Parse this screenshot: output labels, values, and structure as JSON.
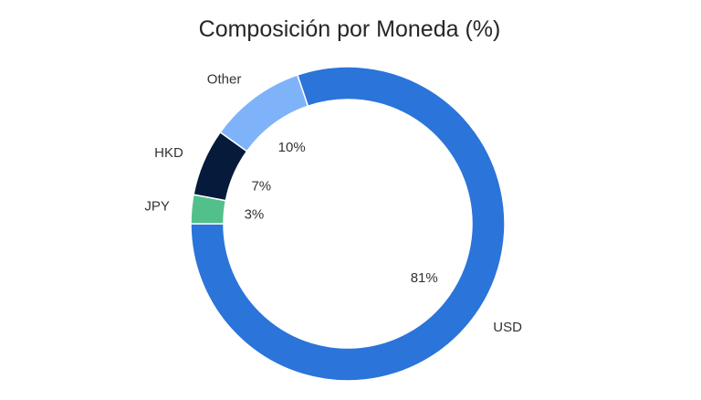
{
  "chart_data": {
    "type": "pie",
    "donut": true,
    "title": "Composición por Moneda (%)",
    "start_angle_deg": 180,
    "direction": "counterclockwise",
    "slices": [
      {
        "label": "USD",
        "value": 81,
        "value_label": "81%",
        "color": "#2a74da"
      },
      {
        "label": "Other",
        "value": 10,
        "value_label": "10%",
        "color": "#7fb3f9"
      },
      {
        "label": "HKD",
        "value": 7,
        "value_label": "7%",
        "color": "#061a3b"
      },
      {
        "label": "JPY",
        "value": 3,
        "value_label": "3%",
        "color": "#52c08a"
      }
    ]
  }
}
